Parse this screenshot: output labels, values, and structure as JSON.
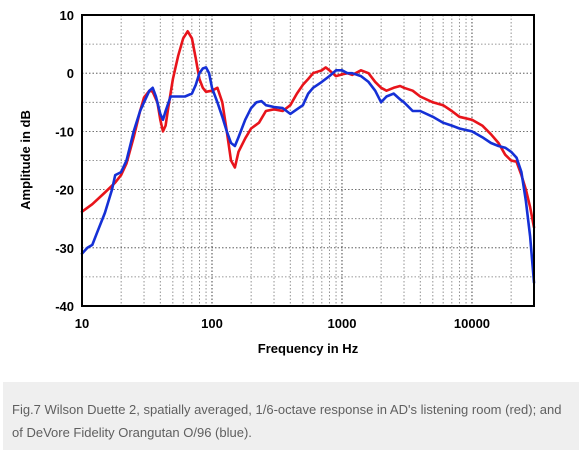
{
  "chart_data": {
    "type": "line",
    "xlabel": "Frequency in Hz",
    "ylabel": "Amplitude in dB",
    "xscale": "log",
    "xlim": [
      10,
      30000
    ],
    "ylim": [
      -40,
      10
    ],
    "xticks": [
      10,
      100,
      1000,
      10000
    ],
    "xtick_labels": [
      "10",
      "100",
      "1000",
      "10000"
    ],
    "yticks": [
      10,
      0,
      -10,
      -20,
      -30,
      -40
    ],
    "ytick_labels": [
      "10",
      "0",
      "-10",
      "-20",
      "-30",
      "-40"
    ],
    "grid": true,
    "grid_style": "dotted",
    "series": [
      {
        "color": "#e8141b",
        "points": [
          [
            10,
            -23.8
          ],
          [
            12,
            -22.5
          ],
          [
            15,
            -20.5
          ],
          [
            18,
            -18.8
          ],
          [
            20,
            -17.5
          ],
          [
            22,
            -15.5
          ],
          [
            25,
            -11
          ],
          [
            28,
            -6.5
          ],
          [
            30,
            -4.2
          ],
          [
            33,
            -3
          ],
          [
            35,
            -3.2
          ],
          [
            38,
            -5
          ],
          [
            40,
            -8
          ],
          [
            42,
            -10
          ],
          [
            44,
            -9
          ],
          [
            46,
            -6
          ],
          [
            50,
            -1
          ],
          [
            55,
            3
          ],
          [
            60,
            6
          ],
          [
            65,
            7.2
          ],
          [
            70,
            6
          ],
          [
            75,
            2.5
          ],
          [
            80,
            -1
          ],
          [
            85,
            -2.5
          ],
          [
            90,
            -3.2
          ],
          [
            100,
            -3
          ],
          [
            110,
            -2.5
          ],
          [
            120,
            -5
          ],
          [
            130,
            -10
          ],
          [
            140,
            -15
          ],
          [
            150,
            -16.2
          ],
          [
            160,
            -13.5
          ],
          [
            180,
            -11.2
          ],
          [
            200,
            -9.5
          ],
          [
            230,
            -8.5
          ],
          [
            260,
            -6.5
          ],
          [
            300,
            -6.2
          ],
          [
            350,
            -6.5
          ],
          [
            400,
            -5.5
          ],
          [
            450,
            -3.5
          ],
          [
            500,
            -2
          ],
          [
            550,
            -1
          ],
          [
            600,
            0
          ],
          [
            700,
            0.5
          ],
          [
            750,
            1
          ],
          [
            800,
            0.5
          ],
          [
            900,
            -0.5
          ],
          [
            1000,
            -0.2
          ],
          [
            1100,
            0
          ],
          [
            1200,
            -0.3
          ],
          [
            1400,
            0.5
          ],
          [
            1600,
            0
          ],
          [
            1800,
            -1.5
          ],
          [
            2000,
            -2.5
          ],
          [
            2200,
            -3
          ],
          [
            2500,
            -2.5
          ],
          [
            2800,
            -2.2
          ],
          [
            3000,
            -2.5
          ],
          [
            3500,
            -3
          ],
          [
            4000,
            -4
          ],
          [
            5000,
            -5
          ],
          [
            6000,
            -5.5
          ],
          [
            7000,
            -6.5
          ],
          [
            8000,
            -7.5
          ],
          [
            10000,
            -8
          ],
          [
            12000,
            -9
          ],
          [
            14000,
            -10.5
          ],
          [
            16000,
            -12
          ],
          [
            18000,
            -14
          ],
          [
            20000,
            -15
          ],
          [
            22000,
            -15.2
          ],
          [
            24000,
            -17.5
          ],
          [
            26000,
            -20
          ],
          [
            28000,
            -23
          ],
          [
            30000,
            -26.5
          ]
        ]
      },
      {
        "color": "#1530d6",
        "points": [
          [
            10,
            -31
          ],
          [
            11,
            -30
          ],
          [
            12,
            -29.5
          ],
          [
            13,
            -27.5
          ],
          [
            15,
            -24
          ],
          [
            17,
            -20
          ],
          [
            18,
            -17.5
          ],
          [
            20,
            -17
          ],
          [
            22,
            -15
          ],
          [
            25,
            -10
          ],
          [
            28,
            -6.5
          ],
          [
            30,
            -5
          ],
          [
            33,
            -3
          ],
          [
            35,
            -2.5
          ],
          [
            37,
            -4
          ],
          [
            40,
            -7
          ],
          [
            42,
            -8
          ],
          [
            44,
            -6.5
          ],
          [
            48,
            -4
          ],
          [
            55,
            -4
          ],
          [
            62,
            -4
          ],
          [
            70,
            -3.5
          ],
          [
            75,
            -2
          ],
          [
            80,
            0
          ],
          [
            85,
            0.8
          ],
          [
            90,
            1
          ],
          [
            95,
            0
          ],
          [
            100,
            -2.5
          ],
          [
            110,
            -5
          ],
          [
            120,
            -7.5
          ],
          [
            130,
            -10
          ],
          [
            140,
            -12
          ],
          [
            150,
            -12.5
          ],
          [
            160,
            -11
          ],
          [
            180,
            -8
          ],
          [
            200,
            -6
          ],
          [
            220,
            -5
          ],
          [
            240,
            -4.8
          ],
          [
            260,
            -5.5
          ],
          [
            300,
            -5.8
          ],
          [
            350,
            -6
          ],
          [
            400,
            -7
          ],
          [
            450,
            -6.2
          ],
          [
            500,
            -5.5
          ],
          [
            550,
            -3.5
          ],
          [
            600,
            -2.5
          ],
          [
            700,
            -1.5
          ],
          [
            800,
            -0.5
          ],
          [
            900,
            0.5
          ],
          [
            1000,
            0.5
          ],
          [
            1100,
            0
          ],
          [
            1200,
            0
          ],
          [
            1400,
            -0.5
          ],
          [
            1600,
            -1.5
          ],
          [
            1800,
            -3
          ],
          [
            2000,
            -5
          ],
          [
            2200,
            -4
          ],
          [
            2500,
            -3.5
          ],
          [
            2800,
            -4.5
          ],
          [
            3000,
            -5
          ],
          [
            3500,
            -6.5
          ],
          [
            4000,
            -6.5
          ],
          [
            5000,
            -7.5
          ],
          [
            6000,
            -8.5
          ],
          [
            7000,
            -9
          ],
          [
            8000,
            -9.5
          ],
          [
            10000,
            -10
          ],
          [
            12000,
            -11
          ],
          [
            14000,
            -12
          ],
          [
            16000,
            -12.5
          ],
          [
            18000,
            -12.8
          ],
          [
            20000,
            -13.5
          ],
          [
            22000,
            -14.5
          ],
          [
            24000,
            -17
          ],
          [
            26000,
            -22
          ],
          [
            28000,
            -28
          ],
          [
            30000,
            -36
          ]
        ]
      }
    ]
  },
  "caption": "Fig.7 Wilson Duette 2, spatially averaged, 1/6-octave response in AD's listening room (red); and of DeVore Fidelity Orangutan O/96 (blue)."
}
